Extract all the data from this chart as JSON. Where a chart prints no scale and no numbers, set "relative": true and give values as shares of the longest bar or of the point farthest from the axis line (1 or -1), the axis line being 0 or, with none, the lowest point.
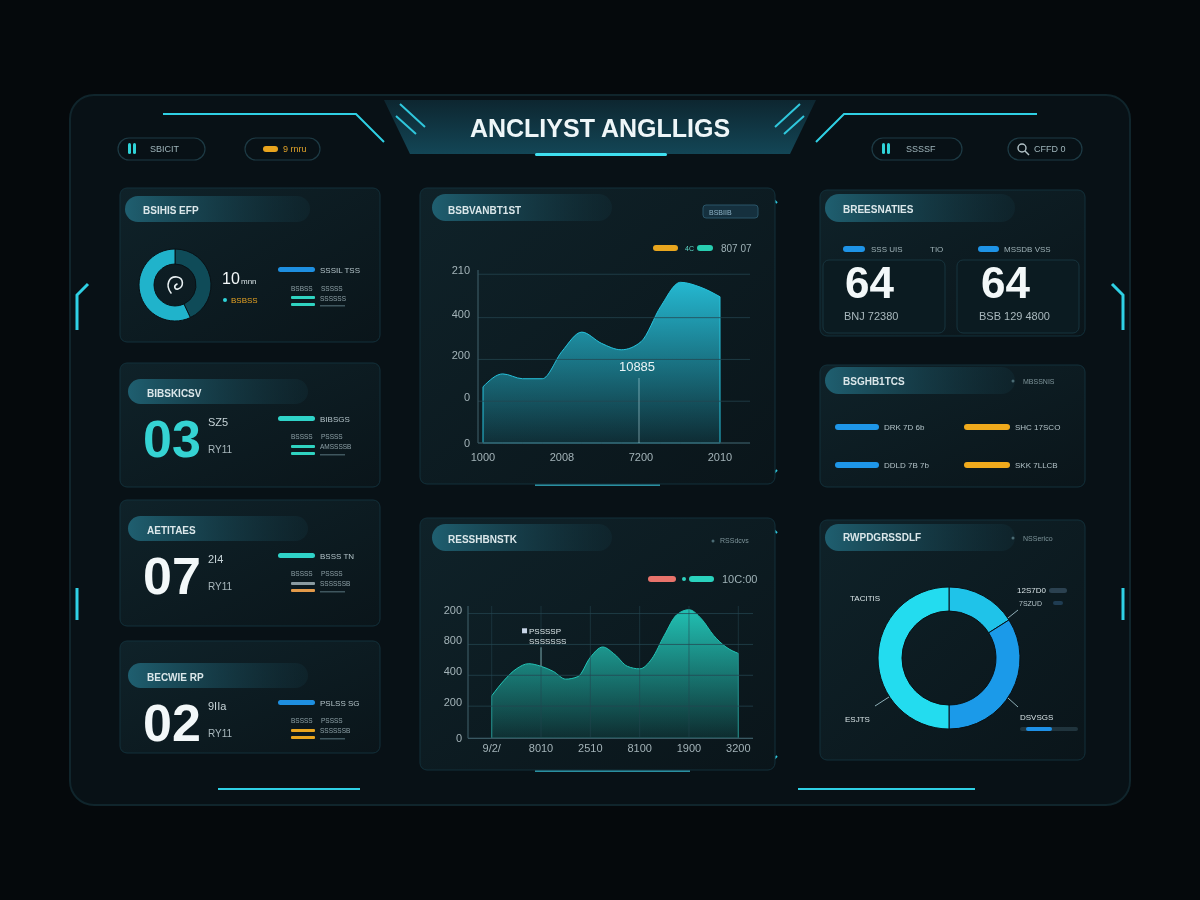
{
  "chart_data": [
    {
      "type": "other",
      "title": "ANCLIYST ANGLLIGS",
      "annotations": [
        "SBICIT",
        "9 rnru",
        "SSSSF",
        "CFFD 0"
      ]
    },
    {
      "type": "donut",
      "title": "BSIHIS EFP",
      "categories": [
        null,
        null
      ],
      "values": [
        43,
        57
      ],
      "colors": [
        "#0f4b58",
        "#20b3cb"
      ],
      "annotations": [
        "10",
        "mnn",
        "BSBSS",
        "SSSIL TSS",
        "BSBSS",
        "SSSSS",
        "SSSSSS"
      ]
    },
    {
      "type": "other",
      "title": "BIBSKICSV",
      "annotations": [
        "03",
        "SZ5",
        "RY11",
        "BIBSGS",
        "BSSSS",
        "PSSSS",
        "AMSSSSB"
      ]
    },
    {
      "type": "other",
      "title": "AETITAES",
      "annotations": [
        "07",
        "2I4",
        "RY11",
        "BSSS TN",
        "BSSSS",
        "PSSSS",
        "SSSSSSB"
      ]
    },
    {
      "type": "other",
      "title": "BECWIE RP",
      "annotations": [
        "02",
        "9IIa",
        "RY11",
        "PSLSS SG",
        "BSSSS",
        "PSSSS",
        "SSSSSSB"
      ]
    },
    {
      "type": "area",
      "title": "BSBVANBT1ST",
      "categories": [
        "1000",
        null,
        null,
        null,
        "2008",
        null,
        null,
        null,
        "7200",
        null,
        null,
        null,
        "2010"
      ],
      "values": [
        0.35,
        0.43,
        0.4,
        0.4,
        0.57,
        0.69,
        0.62,
        0.58,
        0.63,
        0.85,
        1,
        0.97,
        0.91
      ],
      "relative": true,
      "color": "#26c2dc",
      "ref_lines": [
        {
          "axis": "y",
          "value": 0,
          "label": "0"
        },
        {
          "axis": "y",
          "value": 0.26
        },
        {
          "axis": "y",
          "value": 0.52
        },
        {
          "axis": "y",
          "value": 0.78
        },
        {
          "axis": "y",
          "value": 1.05
        }
      ],
      "annotations": [
        "0",
        "200",
        "400",
        "210",
        "10885",
        "4C",
        "807 07",
        "BSBIIB"
      ]
    },
    {
      "type": "area",
      "title": "RESSHBNSTK",
      "categories": [
        "9/2/",
        null,
        null,
        null,
        "8010",
        null,
        null,
        null,
        "2510",
        null,
        null,
        null,
        "8100",
        null,
        null,
        null,
        "1900",
        null,
        null,
        null,
        "3200"
      ],
      "values": [
        0.33,
        0.45,
        0.54,
        0.58,
        0.56,
        0.52,
        0.46,
        0.48,
        0.63,
        0.71,
        0.65,
        0.56,
        0.54,
        0.62,
        0.8,
        0.96,
        1,
        0.93,
        0.8,
        0.71,
        0.66
      ],
      "relative": true,
      "color": "#22c4b6",
      "grid": "x",
      "ref_lines": [
        {
          "axis": "y",
          "value": 0,
          "label": "0"
        },
        {
          "axis": "y",
          "value": 0.25
        },
        {
          "axis": "y",
          "value": 0.49
        },
        {
          "axis": "y",
          "value": 0.73
        },
        {
          "axis": "y",
          "value": 0.97
        }
      ],
      "annotations": [
        {
          "text": "PSSSSP\nSSSSSSS",
          "x": "8010",
          "y": 0.56
        },
        "200",
        "400",
        "800",
        "200",
        "10C:00",
        "RSSdcvs"
      ]
    },
    {
      "type": "other",
      "title": "BREESNATIES",
      "annotations": [
        "SSS UIS",
        "TIO",
        "64",
        "BNJ 72380",
        "MSSDB VSS",
        "64",
        "BSB 129 4800"
      ]
    },
    {
      "type": "other",
      "title": "BSGHB1TCS",
      "annotations": [
        "MBSSNIS",
        "DRK 7D 6b",
        "SHC 17SCO",
        "DDLD 7B 7b",
        "SKK 7LLCB"
      ]
    },
    {
      "type": "donut",
      "title": "RWPDGRSSDLF",
      "categories": [
        "12S7D0",
        "DSVSGS",
        "ESJTS"
      ],
      "values": [
        16,
        34,
        50
      ],
      "colors": [
        "#1fc3e9",
        "#1b9ae9",
        "#23dcef"
      ],
      "annotations": [
        "NSSerico",
        "TACITIS",
        "7SZUD"
      ]
    }
  ]
}
